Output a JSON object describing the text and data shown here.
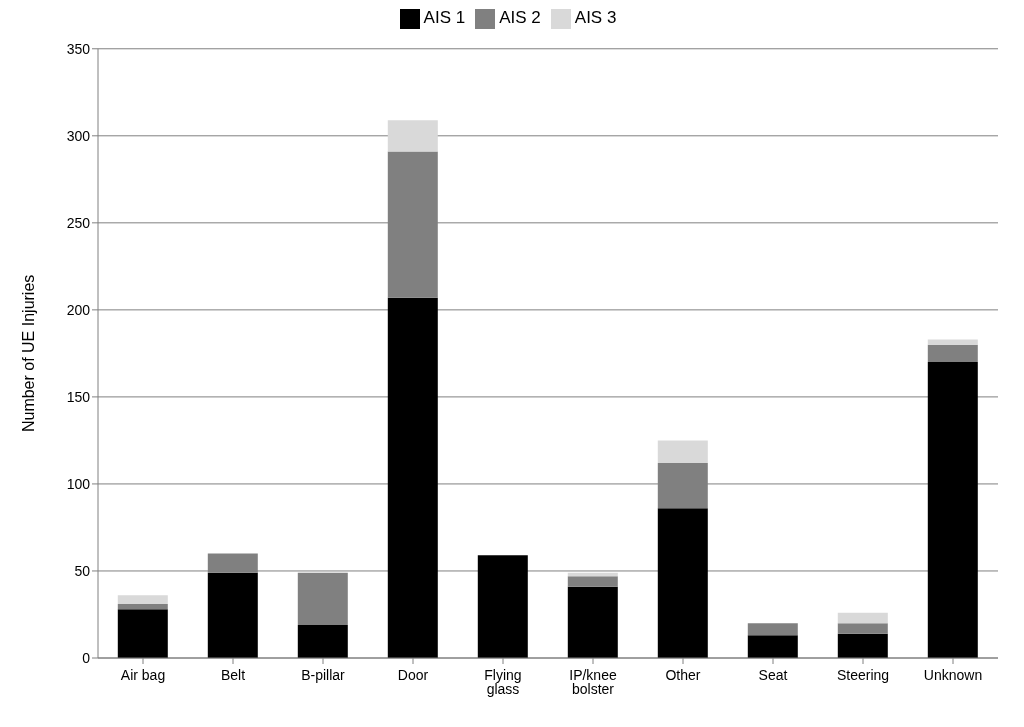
{
  "chart_data": {
    "type": "bar",
    "stacked": true,
    "ylabel": "Number of UE Injuries",
    "categories": [
      "Air bag",
      "Belt",
      "B-pillar",
      "Door",
      "Flying glass",
      "IP/knee bolster",
      "Other",
      "Seat",
      "Steering",
      "Unknown"
    ],
    "series": [
      {
        "name": "AIS 1",
        "color": "#000000",
        "values": [
          28,
          49,
          19,
          207,
          59,
          41,
          86,
          13,
          14,
          170
        ]
      },
      {
        "name": "AIS 2",
        "color": "#808080",
        "values": [
          3,
          11,
          30,
          84,
          0,
          6,
          26,
          7,
          6,
          10
        ]
      },
      {
        "name": "AIS 3",
        "color": "#d9d9d9",
        "values": [
          5,
          0,
          0,
          18,
          0,
          2,
          13,
          0,
          6,
          3
        ]
      }
    ],
    "ylim": [
      0,
      350
    ],
    "yticks": [
      0,
      50,
      100,
      150,
      200,
      250,
      300,
      350
    ],
    "grid": "y",
    "legend": "top"
  }
}
